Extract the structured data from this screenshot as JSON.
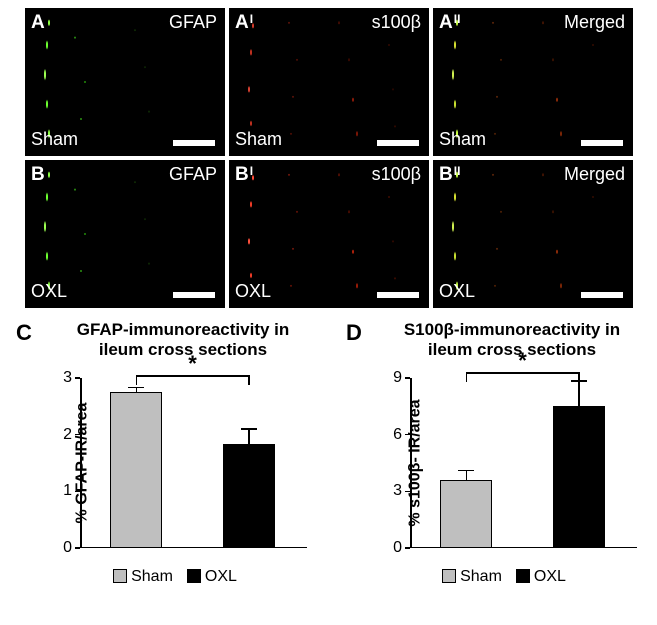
{
  "micrographs": {
    "rows": [
      {
        "treatment": "Sham",
        "panel_base": "A"
      },
      {
        "treatment": "OXL",
        "panel_base": "B"
      }
    ],
    "cols": [
      {
        "sup": "",
        "channel": "GFAP"
      },
      {
        "sup": "I",
        "channel": "s100β"
      },
      {
        "sup": "II",
        "channel": "Merged"
      }
    ]
  },
  "chartC": {
    "letter": "C",
    "title_l1": "GFAP-immunoreactivity in",
    "title_l2": "ileum cross sections",
    "ylabel": "% GFAP-IR/area",
    "ylim": [
      0,
      3
    ],
    "ytick_step": 1,
    "bar_width": 0.46,
    "bars": [
      {
        "group": "Sham",
        "value": 2.75,
        "err": 0.08,
        "color": "#bfbfbf"
      },
      {
        "group": "OXL",
        "value": 1.84,
        "err": 0.26,
        "color": "#000000"
      }
    ],
    "sig": {
      "from": 0,
      "to": 1,
      "level": 3.05,
      "label": "*"
    }
  },
  "chartD": {
    "letter": "D",
    "title_l1": "S100β-immunoreactivity in",
    "title_l2": "ileum cross sections",
    "ylabel": "% s100β- IR/area",
    "ylim": [
      0,
      9
    ],
    "ytick_step": 3,
    "bar_width": 0.46,
    "bars": [
      {
        "group": "Sham",
        "value": 3.6,
        "err": 0.5,
        "color": "#bfbfbf"
      },
      {
        "group": "OXL",
        "value": 7.5,
        "err": 1.35,
        "color": "#000000"
      }
    ],
    "sig": {
      "from": 0,
      "to": 1,
      "level": 9.3,
      "label": "*"
    }
  },
  "legend": {
    "items": [
      {
        "label": "Sham",
        "color": "#bfbfbf"
      },
      {
        "label": "OXL",
        "color": "#000000"
      }
    ]
  }
}
